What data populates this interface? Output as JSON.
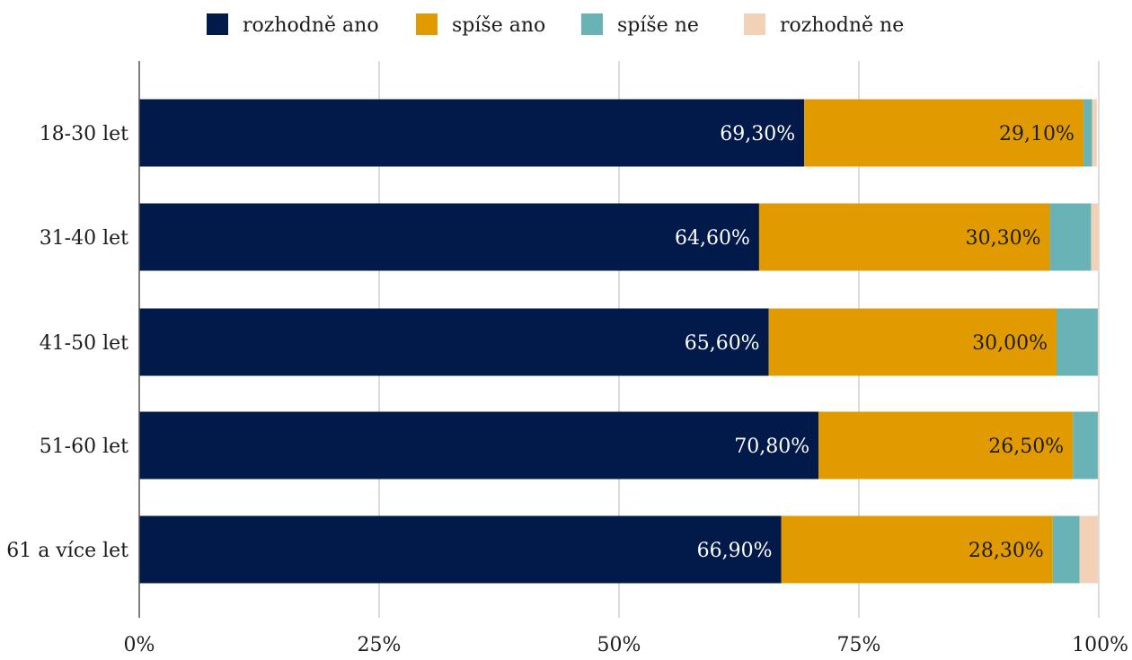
{
  "chart_data": {
    "type": "bar",
    "orientation": "horizontal",
    "stacked": true,
    "title": "",
    "xlabel": "",
    "ylabel": "",
    "xlim": [
      0,
      100
    ],
    "x_ticks": [
      0,
      25,
      50,
      75,
      100
    ],
    "x_tick_labels": [
      "0%",
      "25%",
      "50%",
      "75%",
      "100%"
    ],
    "grid": true,
    "legend_position": "top",
    "categories": [
      "18-30 let",
      "31-40 let",
      "41-50 let",
      "51-60 let",
      "61 a více let"
    ],
    "series": [
      {
        "name": "rozhodně ano",
        "color": "#021a4a",
        "label_color": "#ffffff",
        "values": [
          69.3,
          64.6,
          65.6,
          70.8,
          66.9
        ],
        "data_labels": [
          "69,30%",
          "64,60%",
          "65,60%",
          "70,80%",
          "66,90%"
        ]
      },
      {
        "name": "spíše ano",
        "color": "#e19b00",
        "label_color": "#1c1c1c",
        "values": [
          29.1,
          30.3,
          30.0,
          26.5,
          28.3
        ],
        "data_labels": [
          "29,10%",
          "30,30%",
          "30,00%",
          "26,50%",
          "28,30%"
        ]
      },
      {
        "name": "spíše ne",
        "color": "#69b3b7",
        "label_color": "#1c1c1c",
        "values": [
          0.9,
          4.3,
          4.3,
          2.6,
          2.8
        ],
        "data_labels": []
      },
      {
        "name": "rozhodně ne",
        "color": "#f1d2b7",
        "label_color": "#1c1c1c",
        "values": [
          0.5,
          0.9,
          0.1,
          0.1,
          1.9
        ],
        "data_labels": []
      }
    ]
  },
  "colors": {
    "grid": "#d0d0d0",
    "axis": "#555555",
    "text": "#1c1c1c",
    "background": "#ffffff"
  }
}
